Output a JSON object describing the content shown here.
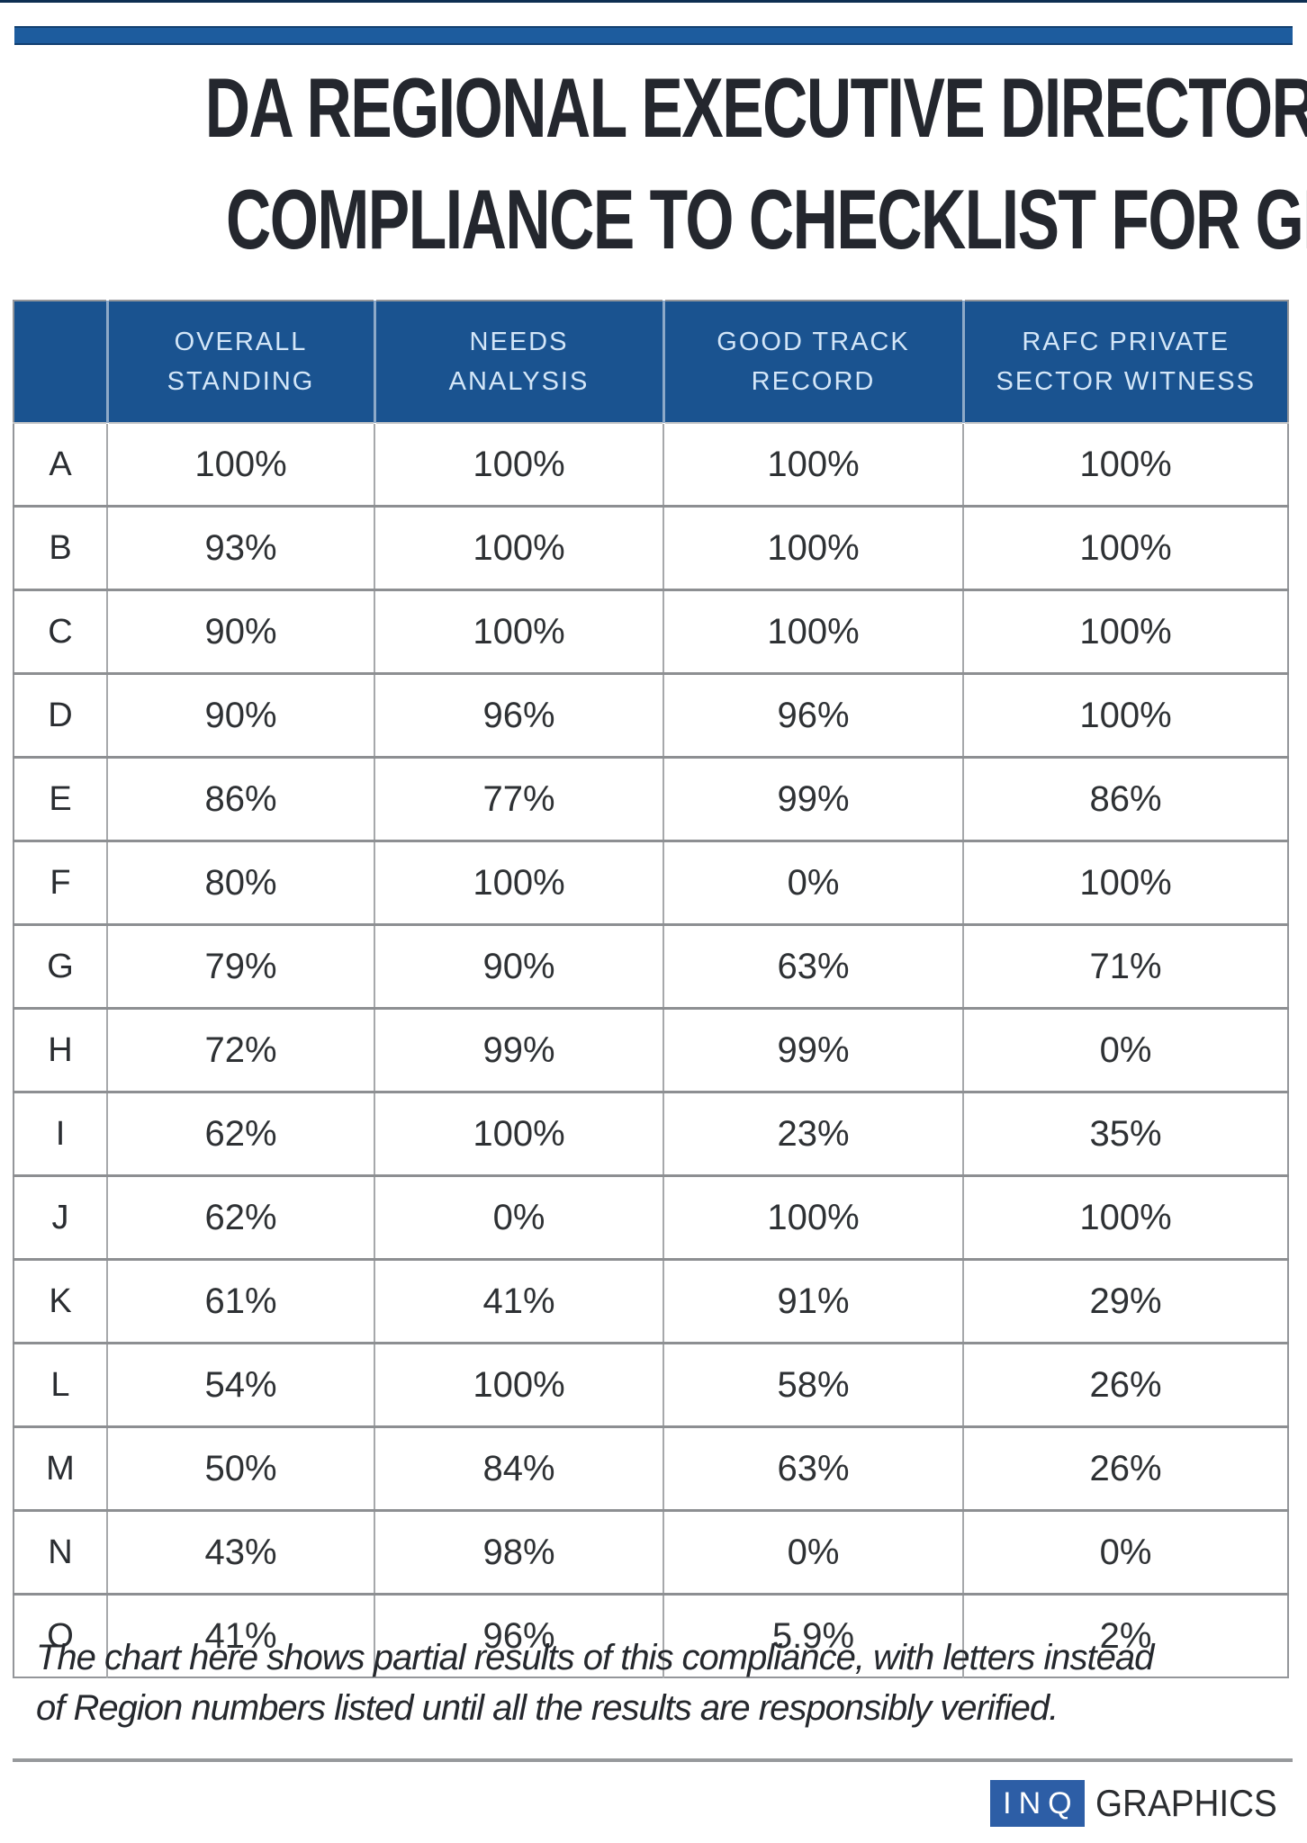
{
  "header": {
    "title_line1": "DA REGIONAL EXECUTIVE DIRECTORS’",
    "title_line2": "COMPLIANCE TO CHECKLIST FOR GRANTS"
  },
  "chart_data": {
    "type": "table",
    "title": "DA REGIONAL EXECUTIVE DIRECTORS’ COMPLIANCE TO CHECKLIST FOR GRANTS",
    "row_header_label": "",
    "columns": [
      "OVERALL STANDING",
      "NEEDS ANALYSIS",
      "GOOD TRACK RECORD",
      "RAFC PRIVATE SECTOR WITNESS"
    ],
    "rows": [
      {
        "label": "A",
        "values": [
          "100%",
          "100%",
          "100%",
          "100%"
        ]
      },
      {
        "label": "B",
        "values": [
          "93%",
          "100%",
          "100%",
          "100%"
        ]
      },
      {
        "label": "C",
        "values": [
          "90%",
          "100%",
          "100%",
          "100%"
        ]
      },
      {
        "label": "D",
        "values": [
          "90%",
          "96%",
          "96%",
          "100%"
        ]
      },
      {
        "label": "E",
        "values": [
          "86%",
          "77%",
          "99%",
          "86%"
        ]
      },
      {
        "label": "F",
        "values": [
          "80%",
          "100%",
          "0%",
          "100%"
        ]
      },
      {
        "label": "G",
        "values": [
          "79%",
          "90%",
          "63%",
          "71%"
        ]
      },
      {
        "label": "H",
        "values": [
          "72%",
          "99%",
          "99%",
          "0%"
        ]
      },
      {
        "label": "I",
        "values": [
          "62%",
          "100%",
          "23%",
          "35%"
        ]
      },
      {
        "label": "J",
        "values": [
          "62%",
          "0%",
          "100%",
          "100%"
        ]
      },
      {
        "label": "K",
        "values": [
          "61%",
          "41%",
          "91%",
          "29%"
        ]
      },
      {
        "label": "L",
        "values": [
          "54%",
          "100%",
          "58%",
          "26%"
        ]
      },
      {
        "label": "M",
        "values": [
          "50%",
          "84%",
          "63%",
          "26%"
        ]
      },
      {
        "label": "N",
        "values": [
          "43%",
          "98%",
          "0%",
          "0%"
        ]
      },
      {
        "label": "O",
        "values": [
          "41%",
          "96%",
          "5.9%",
          "2%"
        ]
      }
    ]
  },
  "footnote": {
    "line1": "The chart here shows partial results of this compliance, with letters instead",
    "line2": "of Region numbers listed until all the results are responsibly verified."
  },
  "footer": {
    "logo_inq": "INQ",
    "logo_graphics": "GRAPHICS"
  },
  "colors": {
    "top_bar_blue": "#1d5c9e",
    "top_bar_edge": "#123f70",
    "header_blue": "#1a5390",
    "header_text": "#d3e6f8",
    "title_text": "#24272e",
    "cell_text": "#2e3134",
    "grid_line": "#8d8f92",
    "logo_blue": "#2d5ea6"
  }
}
